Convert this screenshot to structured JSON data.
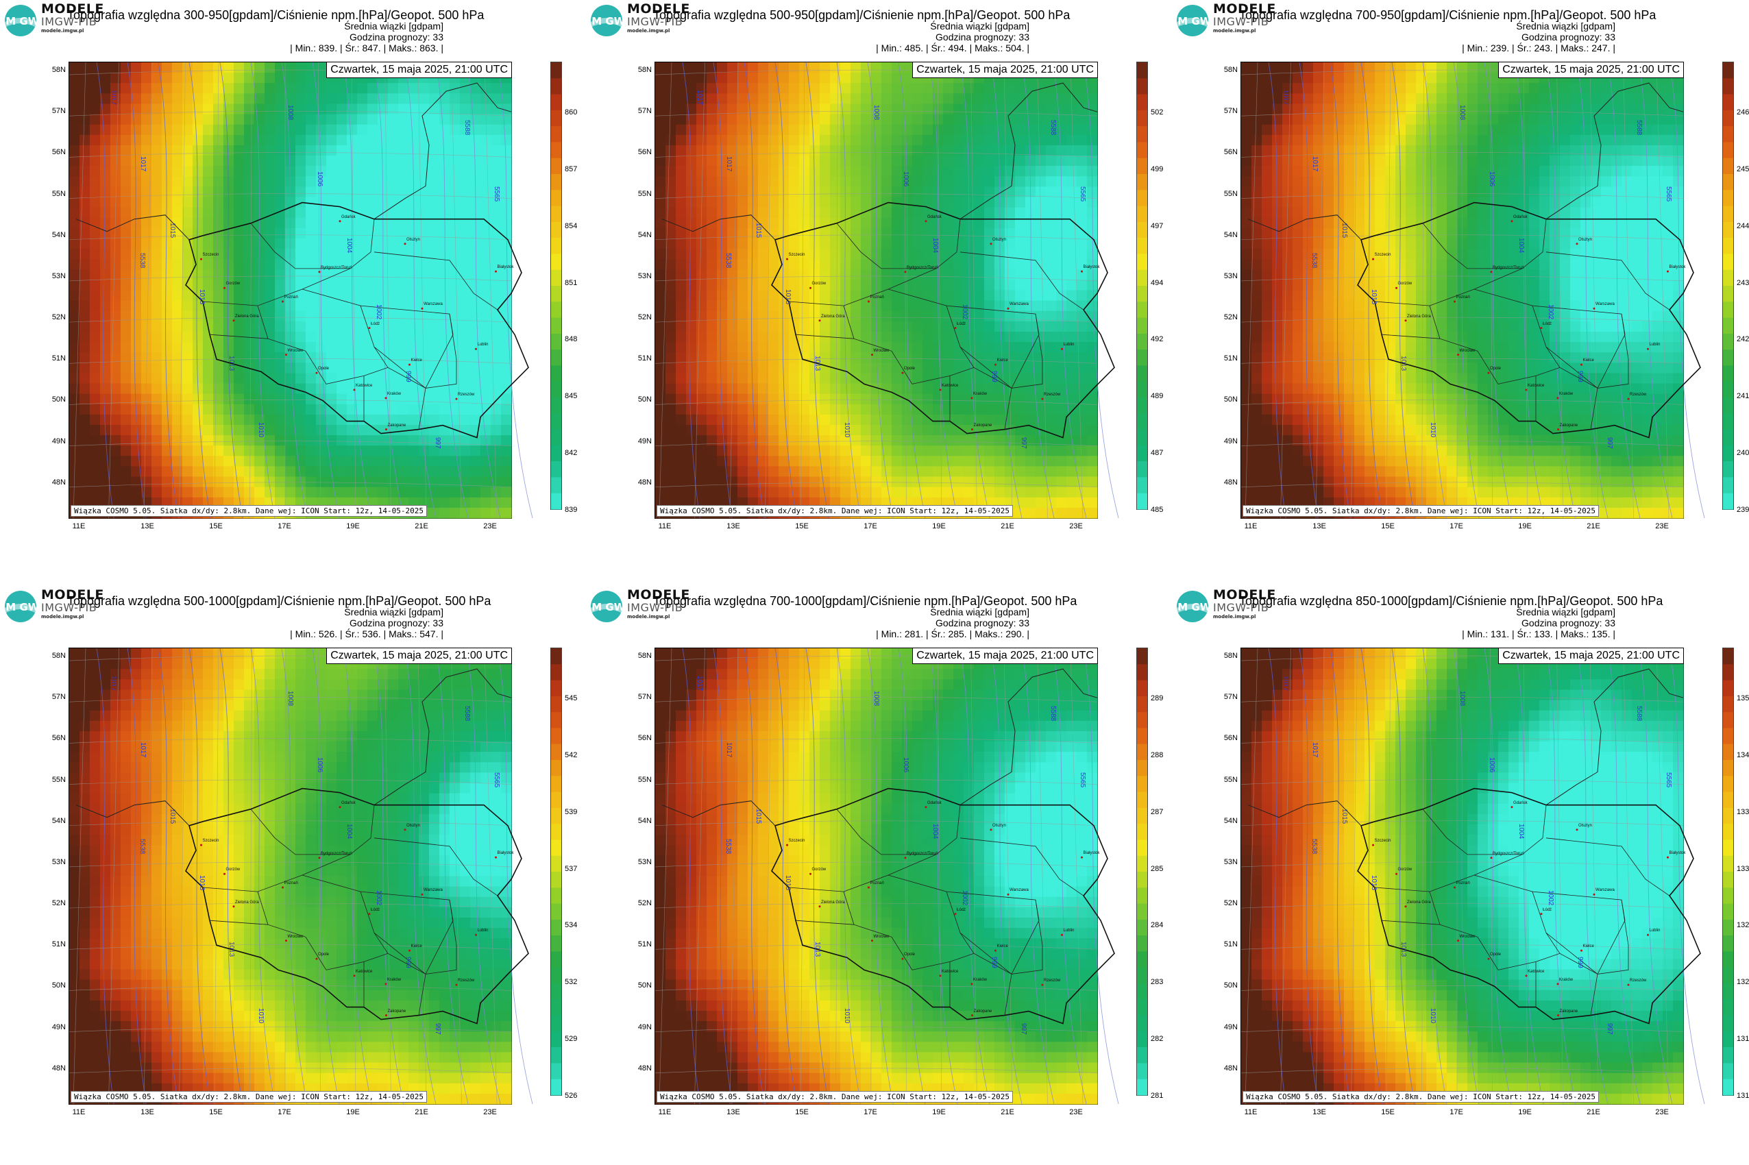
{
  "brand": {
    "line1": "MODELE",
    "line2": "IMGW-PIB",
    "line3": "modele.imgw.pl",
    "logo_text": "IM GW"
  },
  "common": {
    "subtitle": "Średnia wiązki [gdpam]",
    "forecast_hour": "Godzina prognozy: 33",
    "date": "Czwartek, 15 maja 2025, 21:00 UTC",
    "footer": "Wiązka COSMO 5.05. Siatka dx/dy: 2.8km. Dane wej: ICON Start: 12z, 14-05-2025",
    "lat_labels": [
      "58N",
      "57N",
      "56N",
      "55N",
      "54N",
      "53N",
      "52N",
      "51N",
      "50N",
      "49N",
      "48N"
    ],
    "lon_labels": [
      "11E",
      "13E",
      "15E",
      "17E",
      "19E",
      "21E",
      "23E"
    ]
  },
  "cities": [
    {
      "name": "Gdańsk",
      "lon": 18.6,
      "lat": 54.35
    },
    {
      "name": "Olsztyn",
      "lon": 20.5,
      "lat": 53.8
    },
    {
      "name": "Białystok",
      "lon": 23.15,
      "lat": 53.13
    },
    {
      "name": "Szczecin",
      "lon": 14.55,
      "lat": 53.43
    },
    {
      "name": "Bydgoszcz/Toruń",
      "lon": 18.0,
      "lat": 53.12
    },
    {
      "name": "Gorzów",
      "lon": 15.23,
      "lat": 52.73
    },
    {
      "name": "Poznań",
      "lon": 16.93,
      "lat": 52.4
    },
    {
      "name": "Warszawa",
      "lon": 21.0,
      "lat": 52.23
    },
    {
      "name": "Zielona Góra",
      "lon": 15.5,
      "lat": 51.94
    },
    {
      "name": "Łódź",
      "lon": 19.46,
      "lat": 51.76
    },
    {
      "name": "Lublin",
      "lon": 22.57,
      "lat": 51.25
    },
    {
      "name": "Wrocław",
      "lon": 17.03,
      "lat": 51.11
    },
    {
      "name": "Kielce",
      "lon": 20.63,
      "lat": 50.87
    },
    {
      "name": "Opole",
      "lon": 17.92,
      "lat": 50.67
    },
    {
      "name": "Rzeszów",
      "lon": 22.0,
      "lat": 50.04
    },
    {
      "name": "Katowice",
      "lon": 19.02,
      "lat": 50.26
    },
    {
      "name": "Kraków",
      "lon": 19.94,
      "lat": 50.06
    },
    {
      "name": "Zakopane",
      "lon": 19.95,
      "lat": 49.3
    }
  ],
  "isobar_labels": [
    "1017",
    "1017",
    "1015",
    "1013",
    "1013",
    "1010",
    "1008",
    "1006",
    "1004",
    "1002",
    "999",
    "997",
    "5588",
    "5565",
    "5538"
  ],
  "colors": {
    "low": "#3ef0dc",
    "mid": "#f2e61a",
    "high": "#5a2412"
  },
  "panels": [
    {
      "title": "Topografia względna 300-950[gpdam]/Ciśnienie npm.[hPa]/Geopot. 500 hPa",
      "stats": "| Min.:    839. | Śr.:    847. | Maks.:    863. |",
      "min": 839,
      "mean": 847,
      "max": 863,
      "cbar_ticks": [
        "860",
        "857",
        "854",
        "851",
        "848",
        "845",
        "842",
        "839"
      ],
      "cold_x": 0.78,
      "cold_y": 0.45,
      "cold_strength": 1.0,
      "cold_spread": 0.45
    },
    {
      "title": "Topografia względna 500-950[gpdam]/Ciśnienie npm.[hPa]/Geopot. 500 hPa",
      "stats": "| Min.:    485. | Śr.:    494. | Maks.:    504. |",
      "min": 485,
      "mean": 494,
      "max": 504,
      "cbar_ticks": [
        "502",
        "499",
        "497",
        "494",
        "492",
        "489",
        "487",
        "485"
      ],
      "cold_x": 0.9,
      "cold_y": 0.4,
      "cold_strength": 0.8,
      "cold_spread": 0.25
    },
    {
      "title": "Topografia względna 700-950[gpdam]/Ciśnienie npm.[hPa]/Geopot. 500 hPa",
      "stats": "| Min.:    239. | Śr.:    243. | Maks.:    247. |",
      "min": 239,
      "mean": 243,
      "max": 247,
      "cbar_ticks": [
        "246",
        "245",
        "244",
        "243",
        "242",
        "241",
        "240",
        "239"
      ],
      "cold_x": 0.88,
      "cold_y": 0.42,
      "cold_strength": 0.85,
      "cold_spread": 0.3
    },
    {
      "title": "Topografia względna 500-1000[gpdam]/Ciśnienie npm.[hPa]/Geopot. 500 hPa",
      "stats": "| Min.:    526. | Śr.:    536. | Maks.:    547. |",
      "min": 526,
      "mean": 536,
      "max": 547,
      "cbar_ticks": [
        "545",
        "542",
        "539",
        "537",
        "534",
        "532",
        "529",
        "526"
      ],
      "cold_x": 0.95,
      "cold_y": 0.42,
      "cold_strength": 0.8,
      "cold_spread": 0.22
    },
    {
      "title": "Topografia względna 700-1000[gpdam]/Ciśnienie npm.[hPa]/Geopot. 500 hPa",
      "stats": "| Min.:    281. | Śr.:    285. | Maks.:    290. |",
      "min": 281,
      "mean": 285,
      "max": 290,
      "cbar_ticks": [
        "289",
        "288",
        "287",
        "285",
        "284",
        "283",
        "282",
        "281"
      ],
      "cold_x": 0.9,
      "cold_y": 0.4,
      "cold_strength": 0.85,
      "cold_spread": 0.27
    },
    {
      "title": "Topografia względna 850-1000[gpdam]/Ciśnienie npm.[hPa]/Geopot. 500 hPa",
      "stats": "| Min.:    131. | Śr.:    133. | Maks.:    135. |",
      "min": 131,
      "mean": 133,
      "max": 135,
      "cbar_ticks": [
        "135",
        "134",
        "133",
        "133",
        "132",
        "132",
        "131",
        "131"
      ],
      "cold_x": 0.8,
      "cold_y": 0.45,
      "cold_strength": 0.9,
      "cold_spread": 0.38
    }
  ]
}
